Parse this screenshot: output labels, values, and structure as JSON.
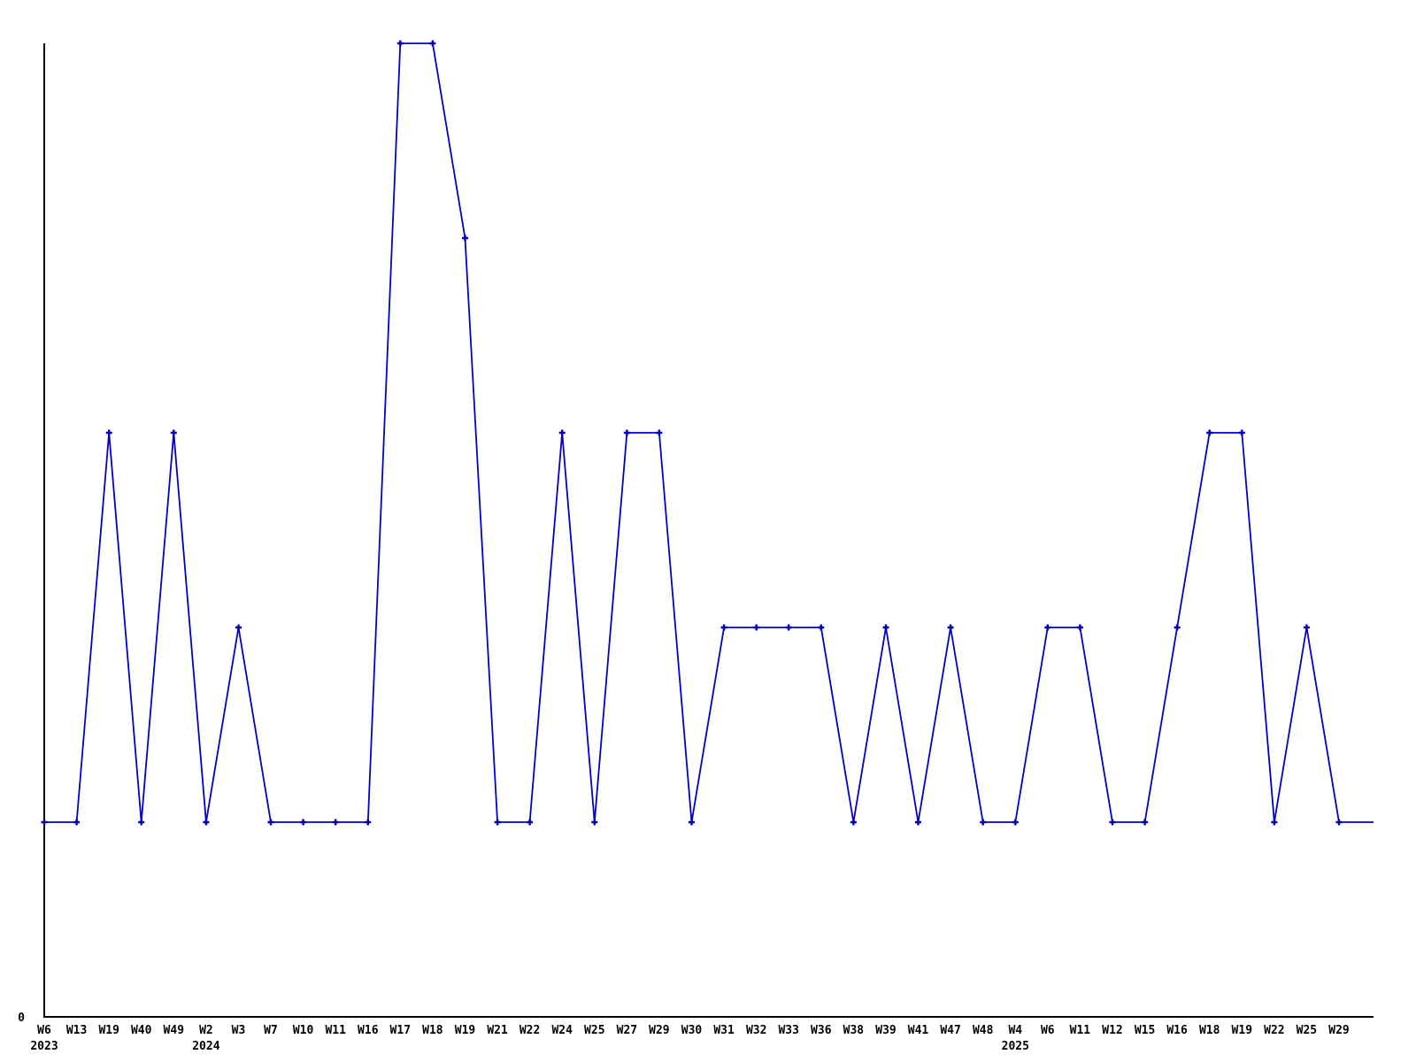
{
  "chart_data": {
    "type": "line",
    "title": "",
    "xlabel": "",
    "ylabel": "",
    "grid": false,
    "legend": false,
    "ylim": [
      0,
      5
    ],
    "y_zero_label": "0",
    "x_tick_labels": [
      "W6",
      "W13",
      "W19",
      "W40",
      "W49",
      "W2",
      "W3",
      "W7",
      "W10",
      "W11",
      "W16",
      "W17",
      "W18",
      "W19",
      "W21",
      "W22",
      "W24",
      "W25",
      "W27",
      "W29",
      "W30",
      "W31",
      "W32",
      "W33",
      "W36",
      "W38",
      "W39",
      "W41",
      "W47",
      "W48",
      "W4",
      "W6",
      "W11",
      "W12",
      "W15",
      "W16",
      "W18",
      "W19",
      "W22",
      "W25",
      "W29"
    ],
    "year_markers": [
      {
        "tick_index": 0,
        "label": "2023"
      },
      {
        "tick_index": 5,
        "label": "2024"
      },
      {
        "tick_index": 30,
        "label": "2025"
      }
    ],
    "values": [
      1,
      1,
      3,
      1,
      3,
      1,
      2,
      1,
      1,
      1,
      1,
      5,
      5,
      4,
      1,
      1,
      3,
      1,
      3,
      3,
      1,
      2,
      2,
      2,
      2,
      1,
      2,
      1,
      2,
      1,
      1,
      2,
      2,
      1,
      1,
      2,
      3,
      3,
      1,
      2,
      1
    ],
    "trailing_edge_value": 1,
    "line_color": "#0000cc",
    "marker_color": "#0000b3",
    "axis_color": "#000000",
    "background_color": "#ffffff"
  }
}
